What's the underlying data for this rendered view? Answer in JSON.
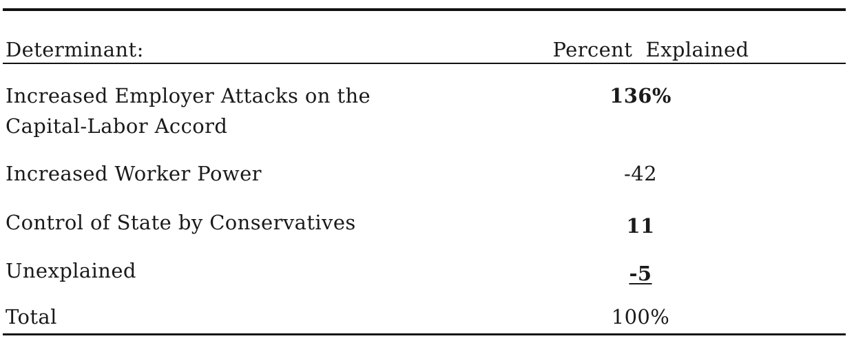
{
  "table": {
    "headers": {
      "determinant": "Determinant:",
      "percent": "Percent  Explained"
    },
    "rows": [
      {
        "determinant_line1": "Increased Employer Attacks on the",
        "determinant_line2": "Capital-Labor Accord",
        "percent": "136%"
      },
      {
        "determinant": "Increased Worker Power",
        "percent": "-42"
      },
      {
        "determinant": "Control of State by Conservatives",
        "percent": "11"
      },
      {
        "determinant": "Unexplained",
        "percent": "-5"
      },
      {
        "determinant": "Total",
        "percent": "100%"
      }
    ]
  }
}
